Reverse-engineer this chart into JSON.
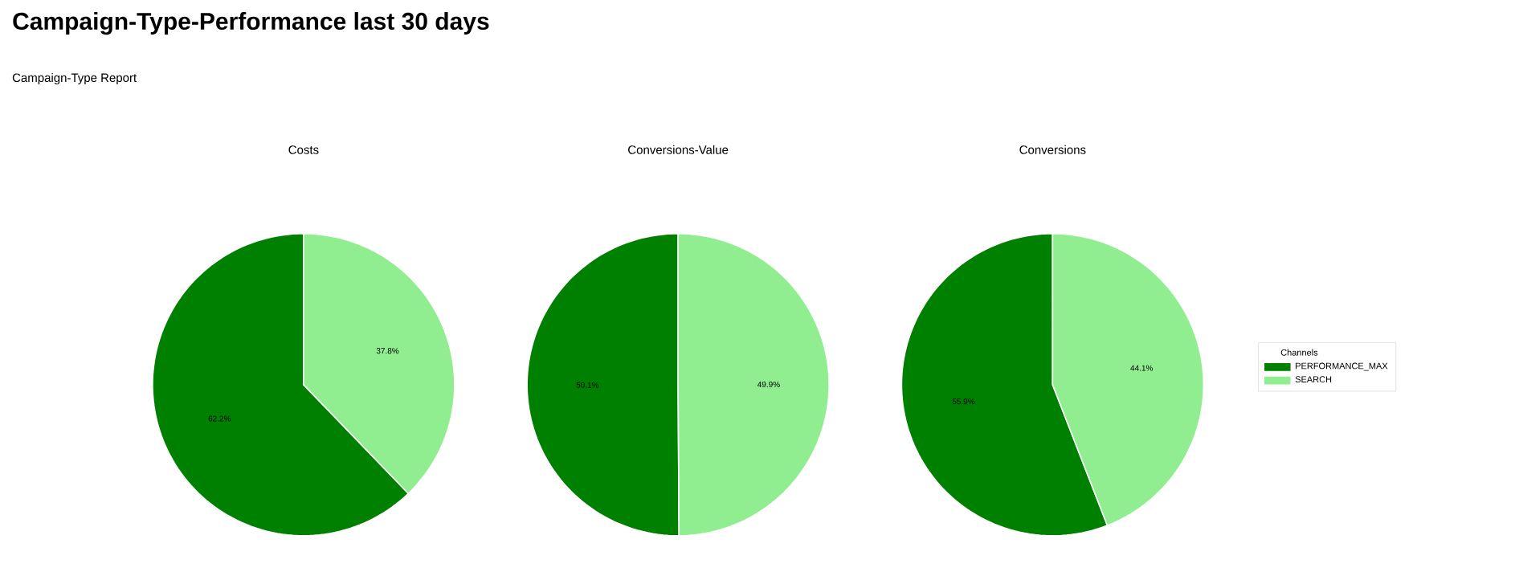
{
  "chart_data": [
    {
      "type": "other",
      "title": "Campaign-Type-Performance last 30 days",
      "subtitle": "Campaign-Type Report"
    },
    {
      "type": "pie",
      "title": "Costs",
      "categories": [
        null,
        null
      ],
      "values": [
        62.2,
        37.8
      ],
      "colors": [
        "#008000",
        "#90ee90"
      ],
      "value_labels": [
        "62.2%",
        "37.8%"
      ]
    },
    {
      "type": "pie",
      "title": "Conversions-Value",
      "categories": [
        null,
        null
      ],
      "values": [
        50.1,
        49.9
      ],
      "colors": [
        "#008000",
        "#90ee90"
      ],
      "value_labels": [
        "50.1%",
        "49.9%"
      ]
    },
    {
      "type": "pie",
      "title": "Conversions",
      "categories": [
        "PERFORMANCE_MAX",
        "SEARCH"
      ],
      "values": [
        55.9,
        44.1
      ],
      "colors": [
        "#008000",
        "#90ee90"
      ],
      "value_labels": [
        "55.9%",
        "44.1%"
      ],
      "legend": "right",
      "legend_title": "Channels"
    }
  ]
}
